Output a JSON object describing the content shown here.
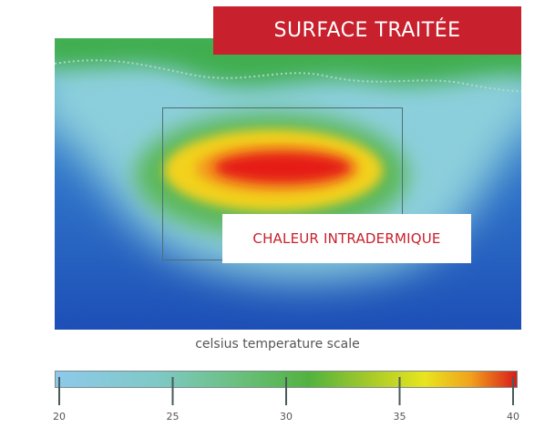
{
  "banner": {
    "text": "SURFACE TRAITÉE"
  },
  "heat_label": {
    "text": "CHALEUR INTRADERMIQUE"
  },
  "scale": {
    "title": "celsius temperature scale",
    "min": 20,
    "max": 40,
    "ticks": [
      "20",
      "25",
      "30",
      "35",
      "40"
    ],
    "tick_values": [
      20,
      25,
      30,
      35,
      40
    ]
  },
  "colors": {
    "banner_red": "#c8202c",
    "hot": "#e51a14",
    "warm": "#f2d21a",
    "mild": "#35a83c",
    "cool": "#7cc8d0",
    "cold": "#1f55b8"
  }
}
